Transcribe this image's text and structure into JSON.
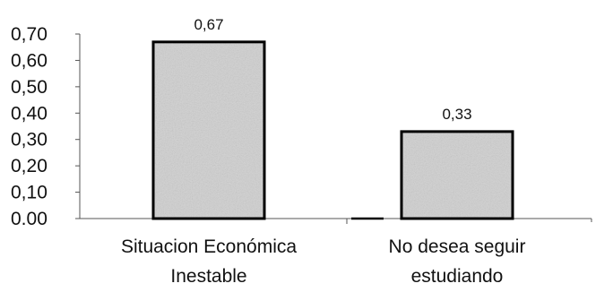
{
  "chart_data": {
    "type": "bar",
    "title": "",
    "xlabel": "",
    "ylabel": "",
    "categories": [
      [
        "Situacion Económica",
        "Inestable"
      ],
      [
        "No desea seguir",
        "estudiando"
      ]
    ],
    "values": [
      0.67,
      0.33
    ],
    "value_labels": [
      "0,67",
      "0,33"
    ],
    "ylim": [
      0,
      0.7
    ],
    "yticks": [
      0,
      0.1,
      0.2,
      0.3,
      0.4,
      0.5,
      0.6,
      0.7
    ],
    "ytick_labels": [
      "0.00",
      "0,10",
      "0,20",
      "0,30",
      "0,40",
      "0,50",
      "0,60",
      "0,70"
    ],
    "grid": false,
    "legend": "none",
    "bar_fill": "#d0d0d0",
    "bar_outline": "#000000",
    "axis_color": "#555555"
  }
}
